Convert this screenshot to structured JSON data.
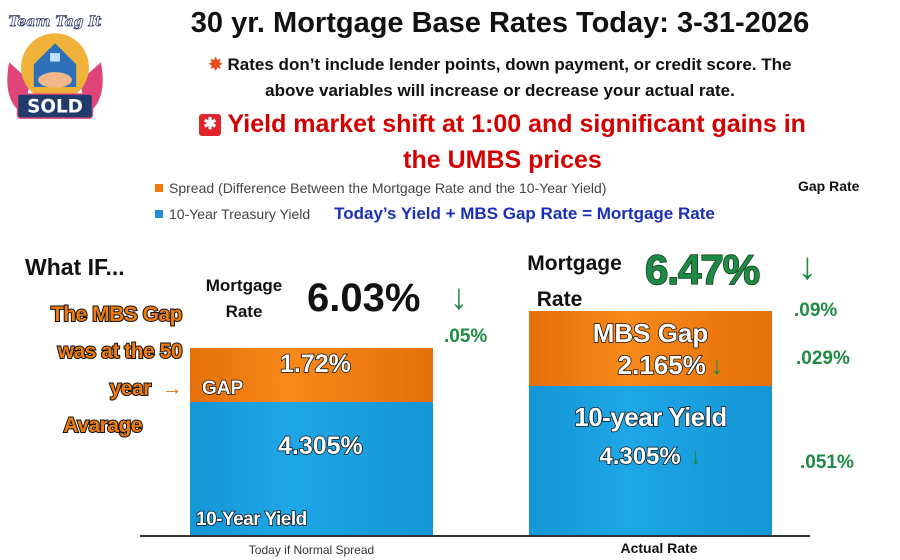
{
  "logo": {
    "text_top": "Team Tag It",
    "text_bottom": "SOLD"
  },
  "title": "30 yr. Mortgage Base Rates Today: 3-31-2026",
  "subtitle": {
    "icon": "collision-icon",
    "line1": "Rates don’t include lender points, down payment, or credit score. The",
    "line2": "above variables will increase or decrease your actual rate."
  },
  "alert": {
    "icon": "siren-icon",
    "line1": "Yield market shift at 1:00 and significant gains in",
    "line2": "the UMBS prices"
  },
  "legend": {
    "spread": "Spread (Difference Between the Mortgage Rate and the 10-Year Yield)",
    "yield": "10-Year Treasury Yield",
    "gap_rate": "Gap Rate",
    "formula": "Today’s  Yield +  MBS Gap Rate = Mortgage Rate"
  },
  "what_if": {
    "heading": "What IF...",
    "line1": "The MBS Gap",
    "line2": "was at the 50",
    "line3": "year",
    "line4": "Avarage"
  },
  "left": {
    "mortgage_label1": "Mortgage",
    "mortgage_label2": "Rate",
    "rate": "6.03%",
    "change": ".05%",
    "gap_label": "GAP",
    "gap_value": "1.72%",
    "yield_value": "4.305%",
    "yield_label": "10-Year Yield"
  },
  "right": {
    "mortgage_label1": "Mortgage",
    "mortgage_label2": "Rate",
    "rate": "6.47%",
    "change": ".09%",
    "gap_label": "MBS Gap",
    "gap_value": "2.165%",
    "gap_change": ".029%",
    "yield_label": "10-year Yield",
    "yield_value": "4.305%",
    "yield_change": ".051%"
  },
  "colors": {
    "spread": "#f07c10",
    "yield": "#1ea6e6",
    "down": "#1e8a44",
    "alert": "#d40000"
  },
  "chart_data": {
    "type": "bar",
    "stacked": true,
    "categories": [
      "Today if Normal Spread",
      "Actual Rate"
    ],
    "series": [
      {
        "name": "10-Year Treasury Yield",
        "values": [
          4.305,
          4.305
        ]
      },
      {
        "name": "Spread (Difference Between the Mortgage Rate and the 10-Year Yield)",
        "values": [
          1.72,
          2.165
        ]
      }
    ],
    "totals": [
      6.03,
      6.47
    ],
    "legend_position": "top-left",
    "grid": false
  }
}
